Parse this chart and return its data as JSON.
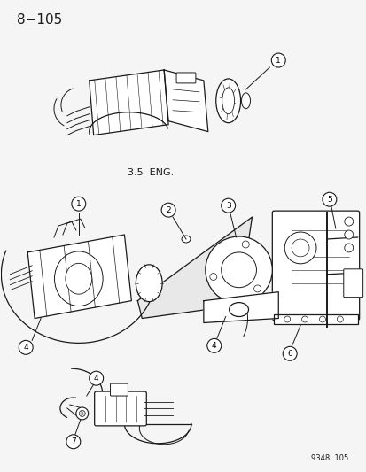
{
  "page_number": "8−105",
  "catalog_number": "9348  105",
  "label_35eng": "3.5  ENG.",
  "bg_color": "#f5f5f5",
  "line_color": "#1a1a1a",
  "text_color": "#1a1a1a",
  "figwidth": 4.14,
  "figheight": 5.33,
  "dpi": 100
}
